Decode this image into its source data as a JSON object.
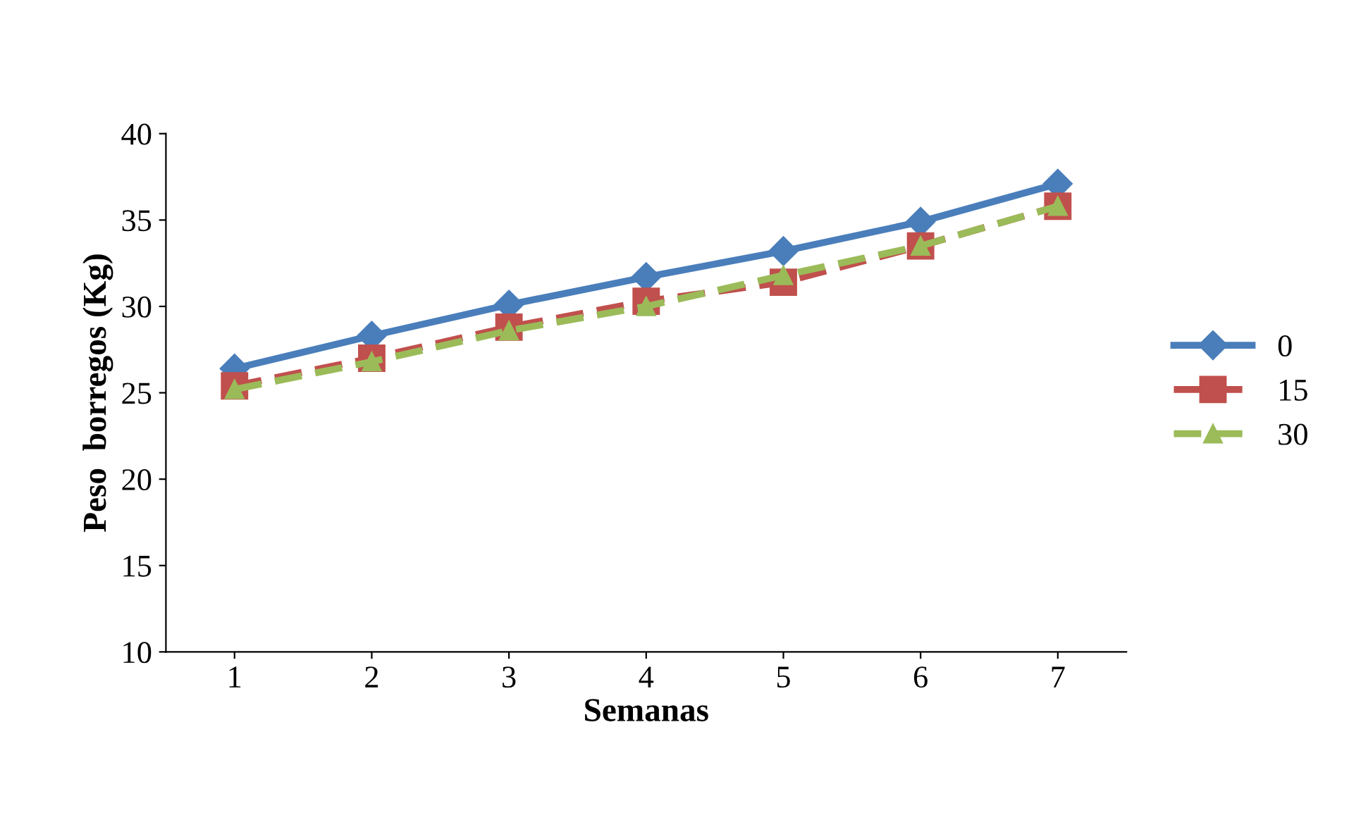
{
  "chart_data": {
    "type": "line",
    "xlabel": "Semanas",
    "ylabel": "Peso  borregos (Kg)",
    "categories": [
      "1",
      "2",
      "3",
      "4",
      "5",
      "6",
      "7"
    ],
    "series": [
      {
        "name": "0",
        "color": "#4a7ebb",
        "marker": "diamond",
        "line_style": "solid",
        "values": [
          26.4,
          28.3,
          30.1,
          31.7,
          33.2,
          34.9,
          37.1
        ]
      },
      {
        "name": "15",
        "color": "#c0504d",
        "marker": "square",
        "line_style": "dashed",
        "values": [
          25.4,
          27.0,
          28.8,
          30.3,
          31.4,
          33.5,
          35.8
        ]
      },
      {
        "name": "30",
        "color": "#9bbb59",
        "marker": "triangle",
        "line_style": "dashed",
        "values": [
          25.2,
          26.8,
          28.6,
          30.0,
          31.8,
          33.5,
          35.8
        ]
      }
    ],
    "ylim": [
      10,
      40
    ],
    "yticks": [
      10,
      15,
      20,
      25,
      30,
      35,
      40
    ],
    "grid": false,
    "legend": "right"
  }
}
